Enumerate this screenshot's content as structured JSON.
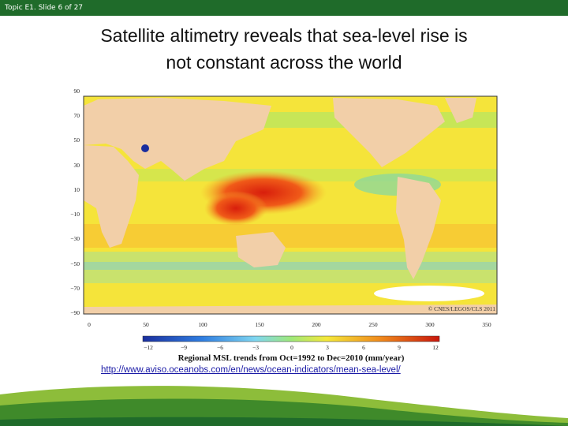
{
  "header": {
    "slide_counter": "Topic E1. Slide 6 of 27"
  },
  "slide": {
    "title_line1": "Satellite altimetry reveals that sea-level rise is",
    "title_line2": "not constant across the world",
    "source_link": "http://www.aviso.oceanobs.com/en/news/ocean-indicators/mean-sea-level/"
  },
  "map": {
    "lat_ticks": [
      "90",
      "70",
      "50",
      "30",
      "10",
      "−10",
      "−30",
      "−50",
      "−70",
      "−90"
    ],
    "lon_ticks": [
      "0",
      "50",
      "100",
      "150",
      "200",
      "250",
      "300",
      "350"
    ],
    "credit": "© CNES/LEGOS/CLS 2011",
    "colorbar_ticks": [
      "−12",
      "−9",
      "−6",
      "−3",
      "0",
      "3",
      "6",
      "9",
      "12"
    ],
    "colorbar_caption": "Regional MSL trends from Oct=1992 to Dec=2010 (mm/year)"
  },
  "colors": {
    "topbar": "#1f6b2a",
    "ocean": "#f5e43a",
    "land": "#f2cfa8",
    "hotspot": "#e03010"
  }
}
